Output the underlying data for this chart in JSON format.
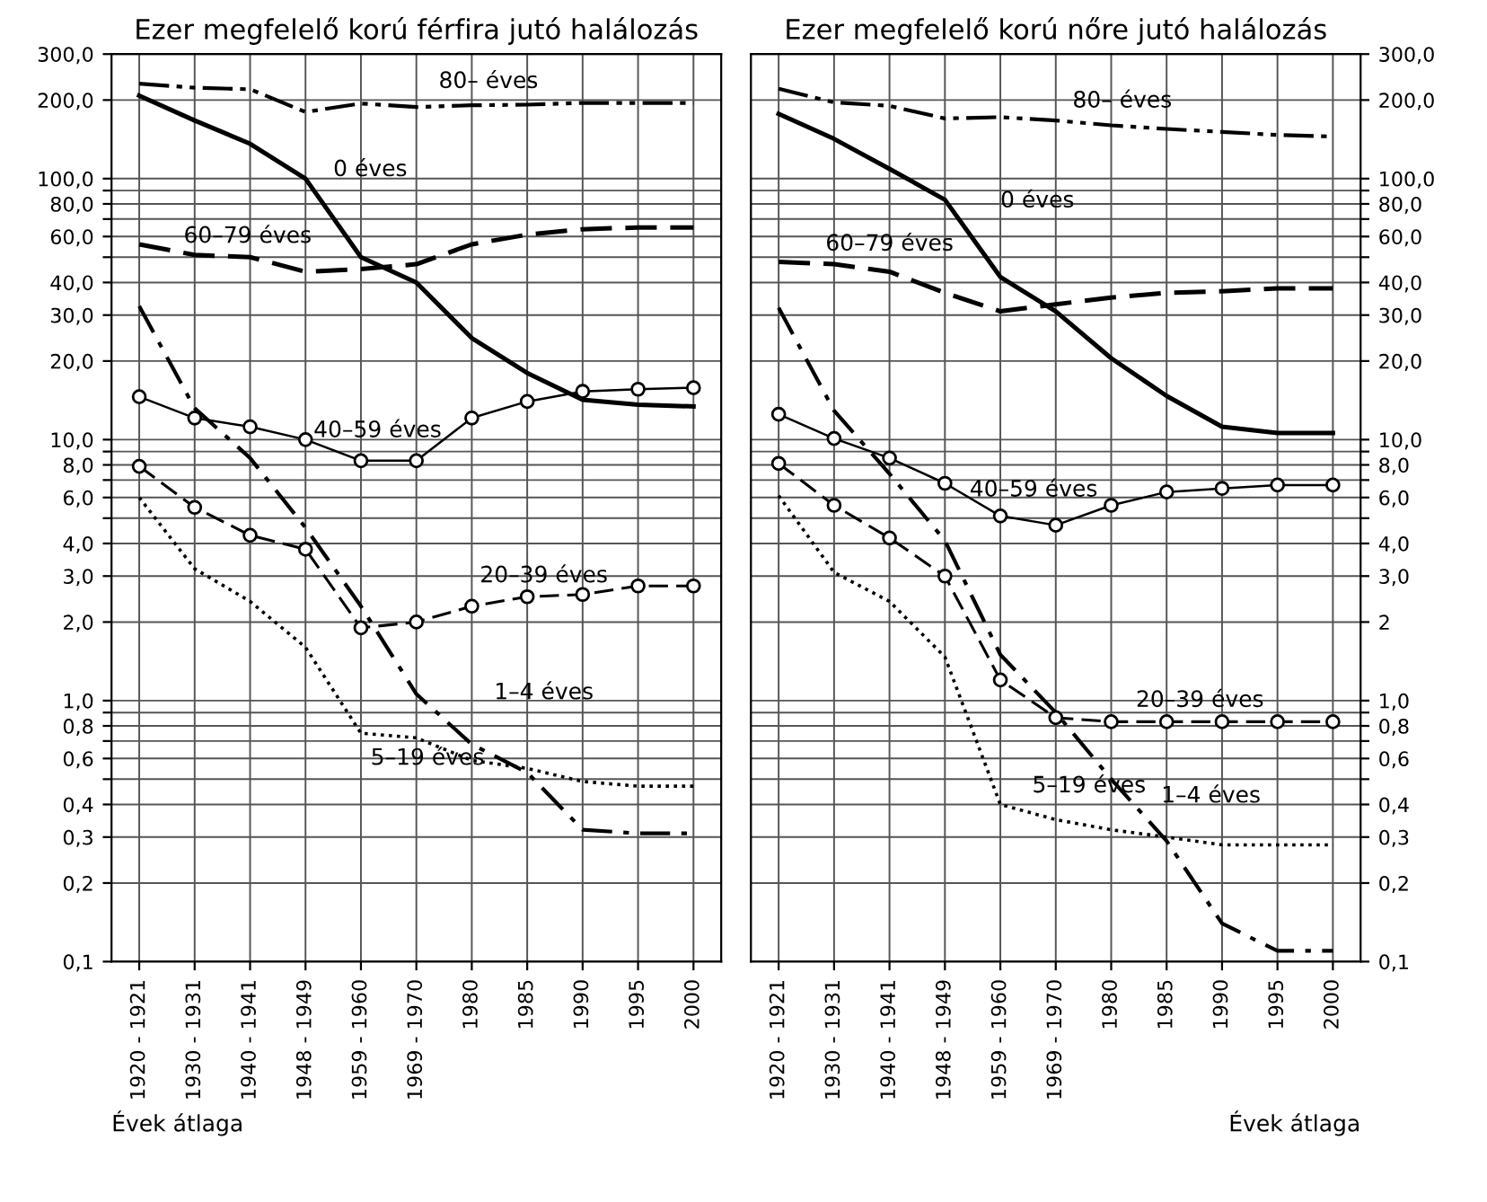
{
  "chart_data": [
    {
      "type": "line",
      "title": "Ezer megfelelő korú férfira jutó halálozás",
      "xlabel": "Évek átlaga",
      "categories": [
        "1920 - 1921",
        "1930 - 1931",
        "1940 - 1941",
        "1948 - 1949",
        "1959 - 1960",
        "1969 - 1970",
        "1980",
        "1985",
        "1990",
        "1995",
        "2000"
      ],
      "series": [
        {
          "name": "80– éves",
          "color": "#000000",
          "line_style": "dashdotdot",
          "values": [
            231,
            223,
            220,
            180,
            194,
            188,
            191,
            192,
            195,
            195,
            195
          ]
        },
        {
          "name": "0 éves",
          "color": "#000000",
          "line_style": "solid",
          "values": [
            208,
            167,
            136,
            100,
            50,
            40,
            24.5,
            18,
            14.2,
            13.6,
            13.4
          ]
        },
        {
          "name": "60–79 éves",
          "color": "#000000",
          "line_style": "dashed",
          "values": [
            56,
            51,
            50,
            44,
            45,
            47,
            56,
            61,
            64,
            65,
            65
          ]
        },
        {
          "name": "40–59 éves",
          "color": "#000000",
          "line_style": "solid",
          "marker": "circle",
          "values": [
            14.6,
            12.1,
            11.2,
            10,
            8.3,
            8.3,
            12.1,
            14,
            15.3,
            15.6,
            15.8
          ]
        },
        {
          "name": "20–39 éves",
          "color": "#000000",
          "line_style": "dashed",
          "marker": "circle",
          "values": [
            7.9,
            5.5,
            4.3,
            3.8,
            1.9,
            2.0,
            2.3,
            2.5,
            2.55,
            2.75,
            2.75
          ]
        },
        {
          "name": "1–4 éves",
          "color": "#000000",
          "line_style": "dashdot",
          "values": [
            32.5,
            13.2,
            8.5,
            4.6,
            2.3,
            1.06,
            0.68,
            0.53,
            0.32,
            0.31,
            0.31
          ]
        },
        {
          "name": "5–19 éves",
          "color": "#000000",
          "line_style": "dotted",
          "values": [
            6.0,
            3.2,
            2.4,
            1.6,
            0.75,
            0.72,
            0.59,
            0.55,
            0.49,
            0.47,
            0.47
          ]
        }
      ],
      "log": "y",
      "ylim": [
        0.1,
        300
      ],
      "yticks": [
        {
          "value": 0.1,
          "label": "0,1"
        },
        {
          "value": 0.2,
          "label": "0,2"
        },
        {
          "value": 0.3,
          "label": "0,3"
        },
        {
          "value": 0.4,
          "label": "0,4"
        },
        {
          "value": 0.5,
          "label": null
        },
        {
          "value": 0.6,
          "label": "0,6"
        },
        {
          "value": 0.7,
          "label": null
        },
        {
          "value": 0.8,
          "label": "0,8"
        },
        {
          "value": 0.9,
          "label": null
        },
        {
          "value": 1,
          "label": "1,0"
        },
        {
          "value": 2,
          "label": "2,0"
        },
        {
          "value": 3,
          "label": "3,0"
        },
        {
          "value": 4,
          "label": "4,0"
        },
        {
          "value": 5,
          "label": null
        },
        {
          "value": 6,
          "label": "6,0"
        },
        {
          "value": 7,
          "label": null
        },
        {
          "value": 8,
          "label": "8,0"
        },
        {
          "value": 9,
          "label": null
        },
        {
          "value": 10,
          "label": "10,0"
        },
        {
          "value": 20,
          "label": "20,0"
        },
        {
          "value": 30,
          "label": "30,0"
        },
        {
          "value": 40,
          "label": "40,0"
        },
        {
          "value": 50,
          "label": null
        },
        {
          "value": 60,
          "label": "60,0"
        },
        {
          "value": 70,
          "label": null
        },
        {
          "value": 80,
          "label": "80,0"
        },
        {
          "value": 90,
          "label": null
        },
        {
          "value": 100,
          "label": "100,0"
        },
        {
          "value": 200,
          "label": "200,0"
        },
        {
          "value": 300,
          "label": "300,0"
        }
      ],
      "grid": true,
      "legend": false
    },
    {
      "type": "line",
      "title": "Ezer megfelelő korú nőre jutó halálozás",
      "xlabel": "Évek átlaga",
      "categories": [
        "1920 - 1921",
        "1930 - 1931",
        "1940 - 1941",
        "1948 - 1949",
        "1959 - 1960",
        "1969 - 1970",
        "1980",
        "1985",
        "1990",
        "1995",
        "2000"
      ],
      "series": [
        {
          "name": "80– éves",
          "color": "#000000",
          "line_style": "dashdotdot",
          "values": [
            221,
            196,
            190,
            170,
            172,
            167,
            160,
            155,
            151,
            147,
            145
          ]
        },
        {
          "name": "0 éves",
          "color": "#000000",
          "line_style": "solid",
          "values": [
            177,
            142,
            109,
            83,
            42,
            31,
            20.5,
            14.7,
            11.2,
            10.6,
            10.6
          ]
        },
        {
          "name": "60–79 éves",
          "color": "#000000",
          "line_style": "dashed",
          "values": [
            48,
            47,
            44,
            36.5,
            31,
            33,
            35,
            36.5,
            37,
            38,
            38
          ]
        },
        {
          "name": "40–59 éves",
          "color": "#000000",
          "line_style": "solid",
          "marker": "circle",
          "values": [
            12.5,
            10.1,
            8.5,
            6.8,
            5.1,
            4.7,
            5.6,
            6.3,
            6.5,
            6.7,
            6.7
          ]
        },
        {
          "name": "20–39 éves",
          "color": "#000000",
          "line_style": "dashed",
          "marker": "circle",
          "values": [
            8.1,
            5.6,
            4.2,
            3.0,
            1.2,
            0.86,
            0.83,
            0.83,
            0.83,
            0.83,
            0.83
          ]
        },
        {
          "name": "1–4 éves",
          "color": "#000000",
          "line_style": "dashdot",
          "values": [
            32,
            12.9,
            7.4,
            4.1,
            1.5,
            0.9,
            0.5,
            0.29,
            0.14,
            0.11,
            0.11
          ]
        },
        {
          "name": "5–19 éves",
          "color": "#000000",
          "line_style": "dotted",
          "values": [
            6.1,
            3.1,
            2.4,
            1.47,
            0.4,
            0.35,
            0.32,
            0.3,
            0.28,
            0.28,
            0.28
          ]
        }
      ],
      "log": "y",
      "ylim": [
        0.1,
        300
      ],
      "yticks": [
        {
          "value": 0.1,
          "label": "0,1"
        },
        {
          "value": 0.2,
          "label": "0,2"
        },
        {
          "value": 0.3,
          "label": "0,3"
        },
        {
          "value": 0.4,
          "label": "0,4"
        },
        {
          "value": 0.5,
          "label": null
        },
        {
          "value": 0.6,
          "label": "0,6"
        },
        {
          "value": 0.7,
          "label": null
        },
        {
          "value": 0.8,
          "label": "0,8"
        },
        {
          "value": 0.9,
          "label": null
        },
        {
          "value": 1,
          "label": "1,0"
        },
        {
          "value": 2,
          "label": "2"
        },
        {
          "value": 3,
          "label": "3,0"
        },
        {
          "value": 4,
          "label": "4,0"
        },
        {
          "value": 5,
          "label": null
        },
        {
          "value": 6,
          "label": "6,0"
        },
        {
          "value": 7,
          "label": null
        },
        {
          "value": 8,
          "label": "8,0"
        },
        {
          "value": 9,
          "label": null
        },
        {
          "value": 10,
          "label": "10,0"
        },
        {
          "value": 20,
          "label": "20,0"
        },
        {
          "value": 30,
          "label": "30,0"
        },
        {
          "value": 40,
          "label": "40,0"
        },
        {
          "value": 50,
          "label": null
        },
        {
          "value": 60,
          "label": "60,0"
        },
        {
          "value": 70,
          "label": null
        },
        {
          "value": 80,
          "label": "80,0"
        },
        {
          "value": 90,
          "label": null
        },
        {
          "value": 100,
          "label": "100,0"
        },
        {
          "value": 200,
          "label": "200,0"
        },
        {
          "value": 300,
          "label": "300,0"
        }
      ],
      "grid": true,
      "legend": false
    }
  ]
}
